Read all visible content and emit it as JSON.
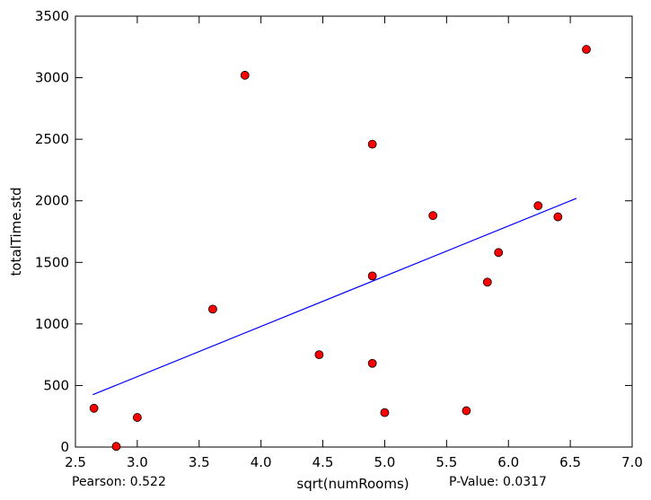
{
  "chart_data": {
    "type": "scatter",
    "title": "",
    "xlabel": "sqrt(numRooms)",
    "ylabel": "totalTime.std",
    "xlim": [
      2.5,
      7.0
    ],
    "ylim": [
      0,
      3500
    ],
    "x_ticks": [
      2.5,
      3.0,
      3.5,
      4.0,
      4.5,
      5.0,
      5.5,
      6.0,
      6.5,
      7.0
    ],
    "y_ticks": [
      0,
      500,
      1000,
      1500,
      2000,
      2500,
      3000,
      3500
    ],
    "x_tick_labels": [
      "2.5",
      "3.0",
      "3.5",
      "4.0",
      "4.5",
      "5.0",
      "5.5",
      "6.0",
      "6.5",
      "7.0"
    ],
    "y_tick_labels": [
      "0",
      "500",
      "1000",
      "1500",
      "2000",
      "2500",
      "3000",
      "3500"
    ],
    "grid": false,
    "series": [
      {
        "type": "scatter",
        "color": "#ff0000",
        "points": [
          {
            "x": 2.65,
            "y": 315
          },
          {
            "x": 2.83,
            "y": 5
          },
          {
            "x": 3.0,
            "y": 240
          },
          {
            "x": 3.61,
            "y": 1120
          },
          {
            "x": 3.87,
            "y": 3020
          },
          {
            "x": 4.47,
            "y": 750
          },
          {
            "x": 4.9,
            "y": 2460
          },
          {
            "x": 4.9,
            "y": 1390
          },
          {
            "x": 4.9,
            "y": 680
          },
          {
            "x": 5.0,
            "y": 280
          },
          {
            "x": 5.39,
            "y": 1880
          },
          {
            "x": 5.66,
            "y": 295
          },
          {
            "x": 5.83,
            "y": 1340
          },
          {
            "x": 5.92,
            "y": 1580
          },
          {
            "x": 6.24,
            "y": 1960
          },
          {
            "x": 6.4,
            "y": 1870
          },
          {
            "x": 6.63,
            "y": 3230
          }
        ]
      },
      {
        "type": "line",
        "color": "#0000ff",
        "points": [
          {
            "x": 2.64,
            "y": 425
          },
          {
            "x": 6.55,
            "y": 2020
          }
        ]
      }
    ],
    "annotations": {
      "pearson": "Pearson: 0.522",
      "pvalue": "P-Value: 0.0317"
    }
  }
}
